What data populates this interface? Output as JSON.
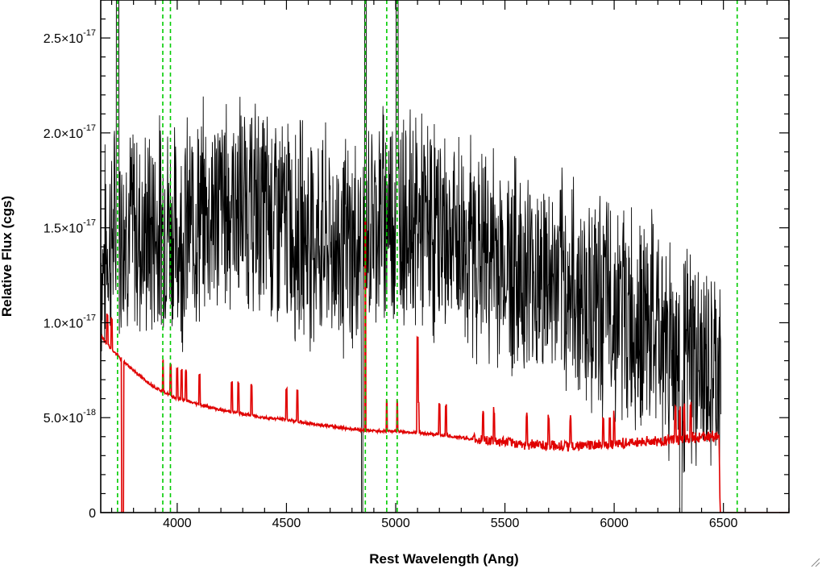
{
  "chart_data": {
    "type": "line",
    "title": "",
    "xlabel": "Rest Wavelength (Ang)",
    "ylabel": "Relative Flux (cgs)",
    "xlim": [
      3650,
      6800
    ],
    "ylim": [
      0,
      2.7e-17
    ],
    "xticks": [
      {
        "value": 4000,
        "label": "4000"
      },
      {
        "value": 4500,
        "label": "4500"
      },
      {
        "value": 5000,
        "label": "5000"
      },
      {
        "value": 5500,
        "label": "5500"
      },
      {
        "value": 6000,
        "label": "6000"
      },
      {
        "value": 6500,
        "label": "6500"
      }
    ],
    "yticks": [
      {
        "value": 0,
        "mantissa": "0",
        "exponent": ""
      },
      {
        "value": 5e-18,
        "mantissa": "5.0×10",
        "exponent": "-18"
      },
      {
        "value": 1e-17,
        "mantissa": "1.0×10",
        "exponent": "-17"
      },
      {
        "value": 1.5e-17,
        "mantissa": "1.5×10",
        "exponent": "-17"
      },
      {
        "value": 2e-17,
        "mantissa": "2.0×10",
        "exponent": "-17"
      },
      {
        "value": 2.5e-17,
        "mantissa": "2.5×10",
        "exponent": "-17"
      }
    ],
    "series": [
      {
        "color": "#000000",
        "style": "noisy observed spectrum",
        "x": [
          3650,
          3700,
          3750,
          3800,
          3850,
          3900,
          3950,
          4000,
          4050,
          4100,
          4150,
          4200,
          4250,
          4300,
          4350,
          4400,
          4450,
          4500,
          4550,
          4600,
          4650,
          4700,
          4750,
          4800,
          4850,
          4900,
          4950,
          5000,
          5050,
          5100,
          5150,
          5200,
          5250,
          5300,
          5350,
          5400,
          5450,
          5500,
          5550,
          5600,
          5650,
          5700,
          5750,
          5800,
          5850,
          5900,
          5950,
          6000,
          6050,
          6100,
          6150,
          6200,
          6250,
          6300,
          6350,
          6400,
          6450,
          6490
        ],
        "y": [
          1.3e-17,
          1.45e-17,
          1.55e-17,
          1.5e-17,
          1.45e-17,
          1.5e-17,
          1.55e-17,
          1.45e-17,
          1.5e-17,
          1.55e-17,
          1.6e-17,
          1.62e-17,
          1.63e-17,
          1.62e-17,
          1.6e-17,
          1.58e-17,
          1.55e-17,
          1.52e-17,
          1.5e-17,
          1.48e-17,
          1.45e-17,
          1.42e-17,
          1.4e-17,
          1.38e-17,
          1.4e-17,
          1.55e-17,
          1.58e-17,
          1.6e-17,
          1.58e-17,
          1.52e-17,
          1.5e-17,
          1.48e-17,
          1.45e-17,
          1.42e-17,
          1.4e-17,
          1.38e-17,
          1.35e-17,
          1.32e-17,
          1.3e-17,
          1.28e-17,
          1.25e-17,
          1.22e-17,
          1.2e-17,
          1.18e-17,
          1.15e-17,
          1.12e-17,
          1.1e-17,
          1.08e-17,
          1.05e-17,
          1.02e-17,
          1e-17,
          9.5e-18,
          9e-18,
          8.5e-18,
          8e-18,
          7.5e-18,
          7e-18,
          6.5e-18
        ]
      },
      {
        "color": "#e00000",
        "style": "model continuum",
        "x": [
          3650,
          3700,
          3750,
          3800,
          3850,
          3900,
          3950,
          4000,
          4100,
          4200,
          4300,
          4400,
          4500,
          4600,
          4700,
          4800,
          4850,
          4900,
          5000,
          5100,
          5200,
          5300,
          5400,
          5500,
          5600,
          5700,
          5800,
          5900,
          6000,
          6100,
          6200,
          6300,
          6400,
          6480,
          6485,
          6800
        ],
        "y": [
          9.3e-18,
          8.6e-18,
          8e-18,
          7.5e-18,
          7e-18,
          6.6e-18,
          6.3e-18,
          6e-18,
          5.7e-18,
          5.4e-18,
          5.2e-18,
          5e-18,
          4.9e-18,
          4.7e-18,
          4.55e-18,
          4.4e-18,
          4.35e-18,
          4.3e-18,
          4.3e-18,
          4.2e-18,
          4.1e-18,
          3.95e-18,
          3.8e-18,
          3.7e-18,
          3.6e-18,
          3.55e-18,
          3.5e-18,
          3.55e-18,
          3.6e-18,
          3.7e-18,
          3.75e-18,
          3.85e-18,
          4e-18,
          4e-18,
          0,
          0
        ]
      }
    ],
    "vertical_lines": [
      {
        "x": 3727,
        "color": "#00cc00",
        "dash": "dashed"
      },
      {
        "x": 3934,
        "color": "#00cc00",
        "dash": "dashed"
      },
      {
        "x": 3969,
        "color": "#00cc00",
        "dash": "dashed"
      },
      {
        "x": 4861,
        "color": "#00cc00",
        "dash": "dashed"
      },
      {
        "x": 4959,
        "color": "#00cc00",
        "dash": "dashed"
      },
      {
        "x": 5007,
        "color": "#00cc00",
        "dash": "dashed"
      },
      {
        "x": 6563,
        "color": "#00cc00",
        "dash": "dashed"
      }
    ],
    "grid": false,
    "legend": "none"
  }
}
